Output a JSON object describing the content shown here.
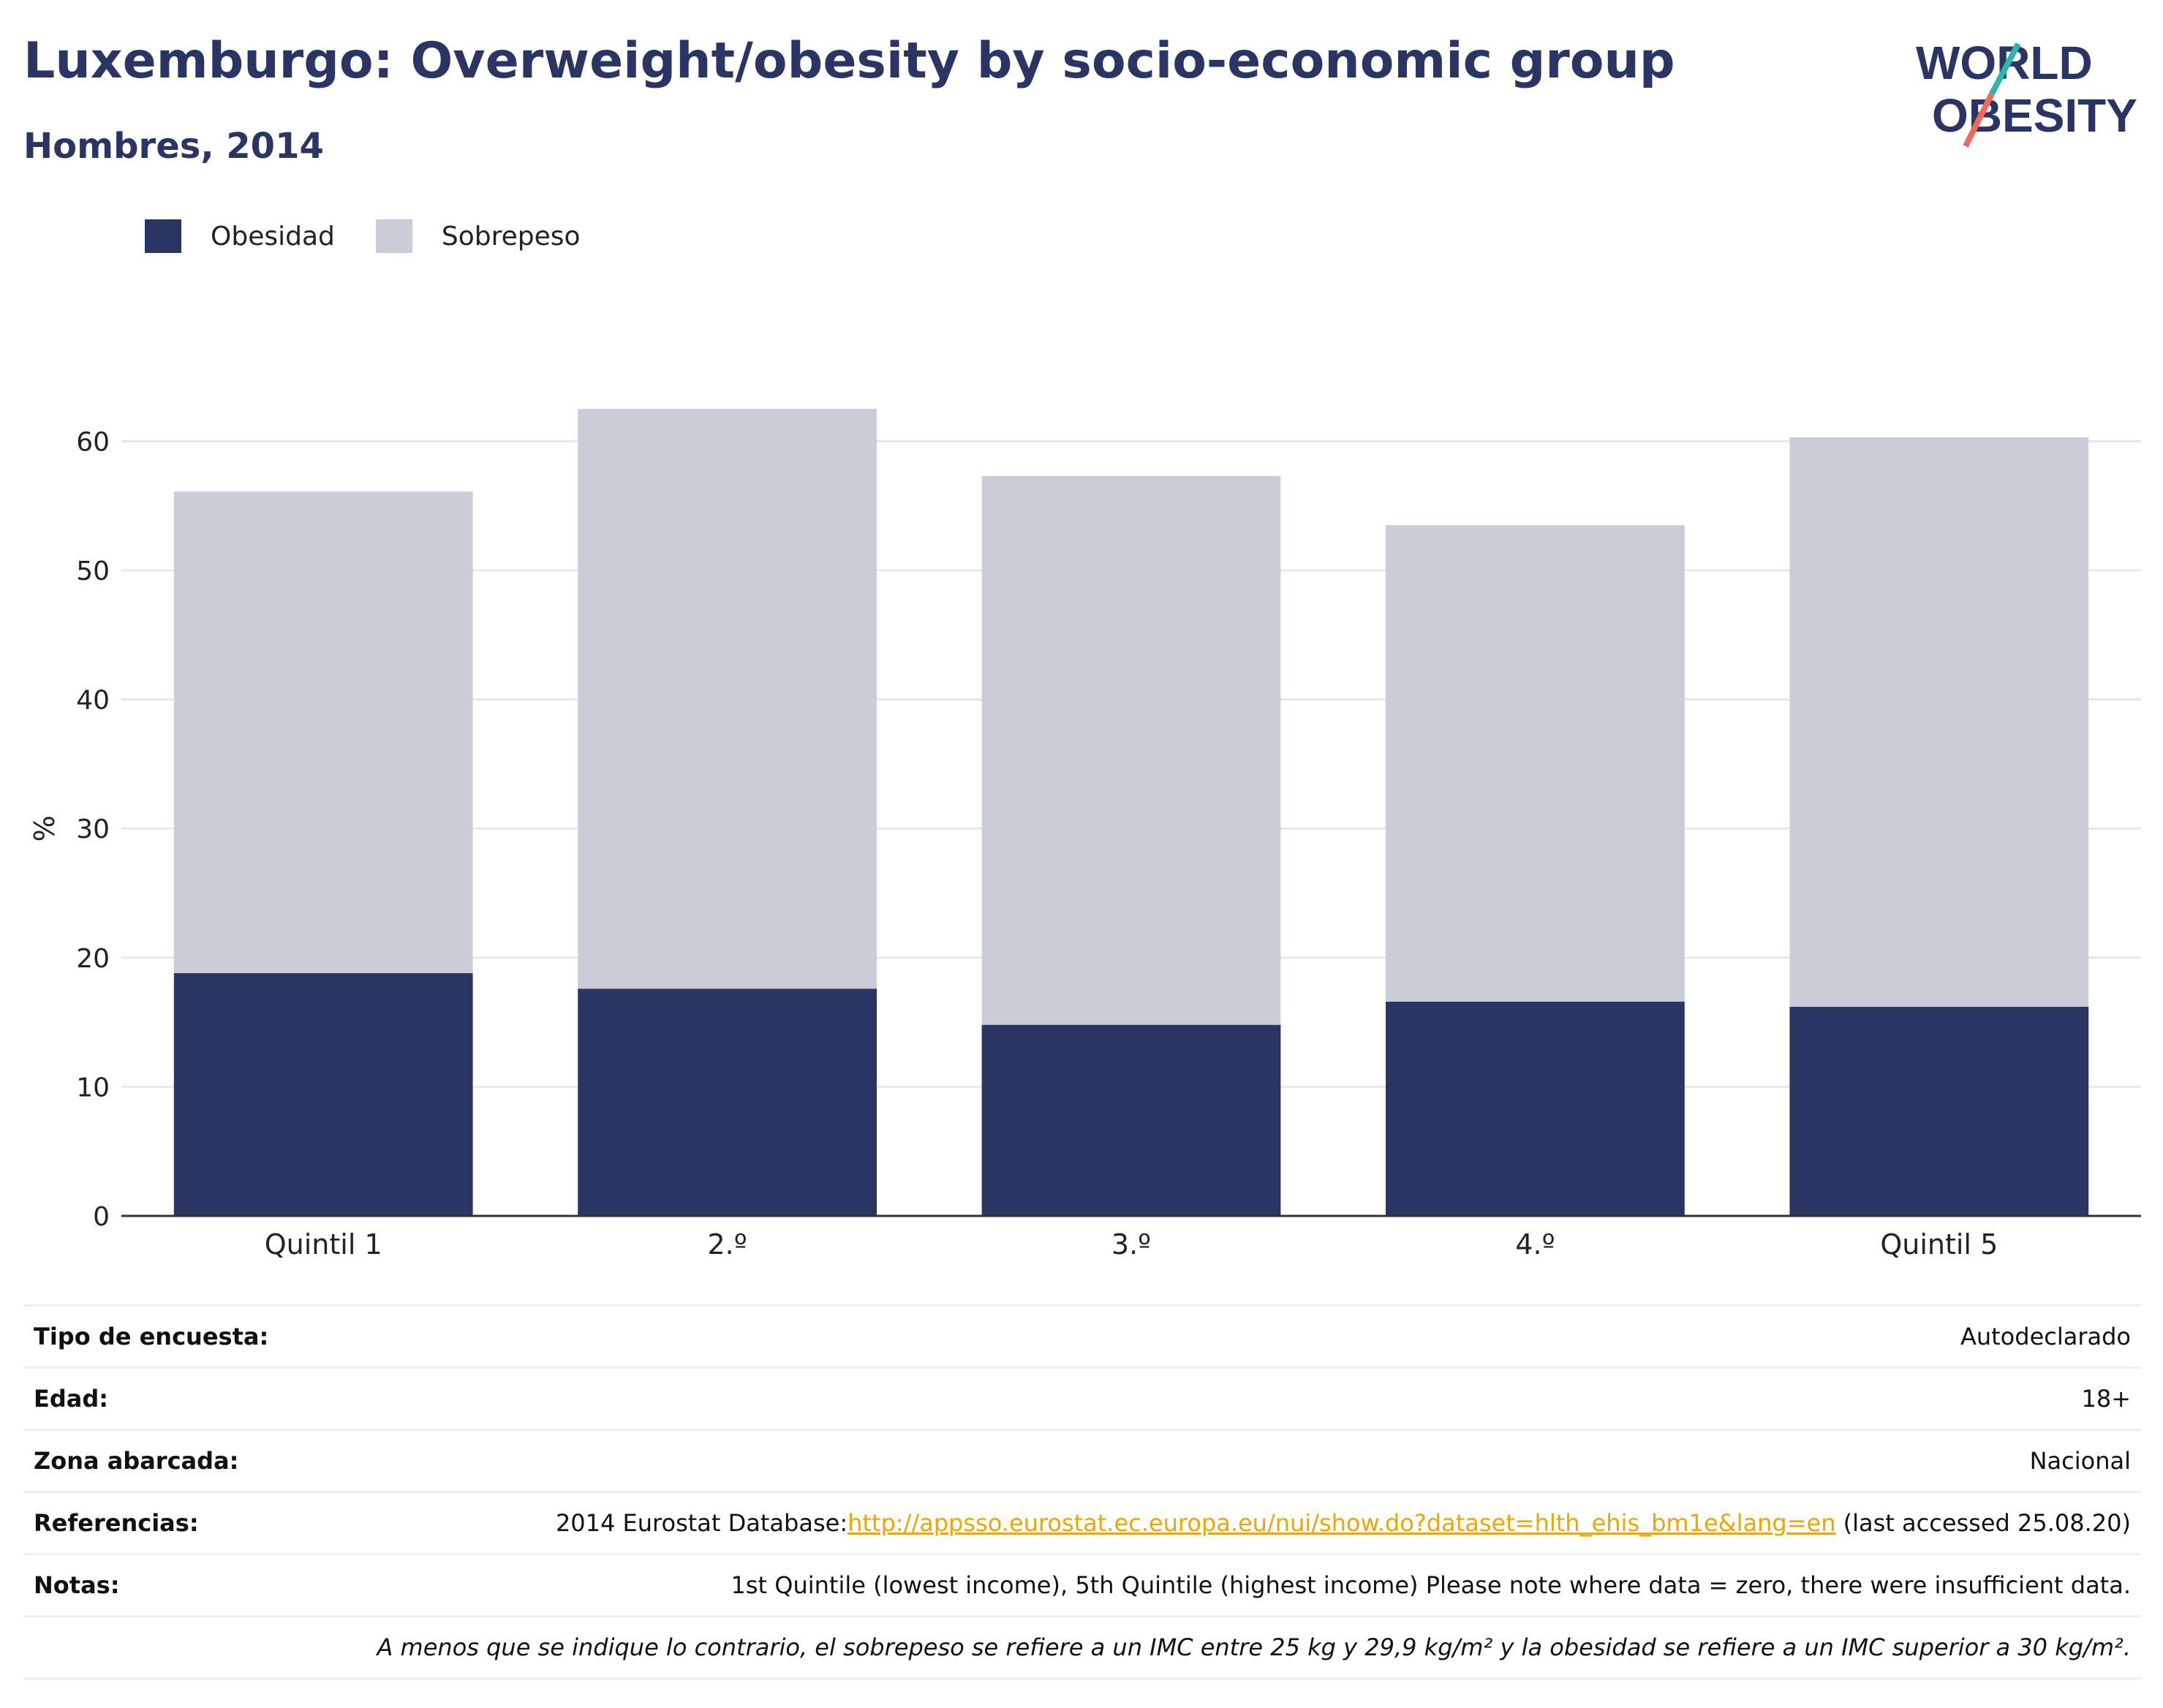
{
  "title": "Luxemburgo: Overweight/obesity by socio-economic group",
  "subtitle": "Hombres, 2014",
  "logo": {
    "line1": "WORLD",
    "line2": "OBESITY"
  },
  "legend": [
    {
      "label": "Obesidad",
      "color": "#2b3563"
    },
    {
      "label": "Sobrepeso",
      "color": "#cacdd8"
    }
  ],
  "chart_data": {
    "type": "bar",
    "stacked": true,
    "categories": [
      "Quintil 1",
      "2.º",
      "3.º",
      "4.º",
      "Quintil 5"
    ],
    "series": [
      {
        "name": "Obesidad",
        "color": "#2b3563",
        "values": [
          18.8,
          17.6,
          14.8,
          16.6,
          16.2
        ]
      },
      {
        "name": "Sobrepeso",
        "color": "#cacdd8",
        "values": [
          37.3,
          44.9,
          42.5,
          36.9,
          44.1
        ]
      }
    ],
    "ylabel": "%",
    "ylim": [
      0,
      65
    ],
    "yticks": [
      0,
      10,
      20,
      30,
      40,
      50,
      60
    ],
    "grid": true,
    "legend_position": "top-left"
  },
  "info": [
    {
      "label": "Tipo de encuesta:",
      "value": "Autodeclarado"
    },
    {
      "label": "Edad:",
      "value": "18+"
    },
    {
      "label": "Zona abarcada:",
      "value": "Nacional"
    },
    {
      "label": "Referencias:",
      "value_prefix": "2014 Eurostat Database:",
      "link": "http://appsso.eurostat.ec.europa.eu/nui/show.do?dataset=hlth_ehis_bm1e&lang=en",
      "value_suffix": " (last accessed 25.08.20)"
    },
    {
      "label": "Notas:",
      "value": "1st Quintile (lowest income), 5th Quintile (highest income) Please note where data = zero, there were insufficient data."
    },
    {
      "label": "",
      "value": "A menos que se indique lo contrario, el sobrepeso se refiere a un IMC entre 25 kg y 29,9 kg/m² y la obesidad se refiere a un IMC superior a 30 kg/m²."
    }
  ]
}
